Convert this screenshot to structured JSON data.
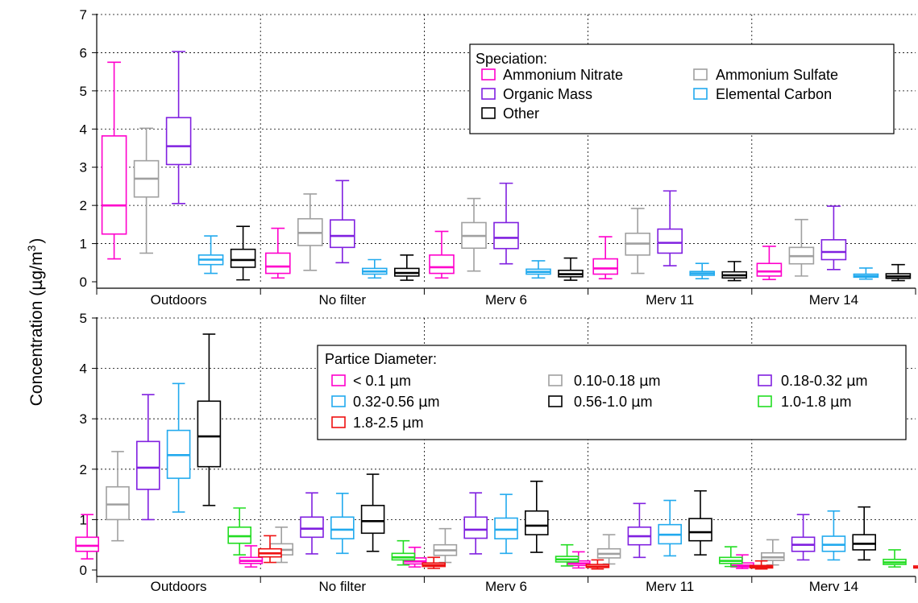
{
  "ylabel": {
    "text": "Concentration (",
    "mu": "µ",
    "unit": "g/m",
    "exp": "3",
    "close": ")"
  },
  "chart_data": [
    {
      "type": "box",
      "categories": [
        "Outdoors",
        "No filter",
        "Merv 6",
        "Merv 11",
        "Merv 14"
      ],
      "ylim": [
        0,
        7
      ],
      "yticks": [
        0,
        1,
        2,
        3,
        4,
        5,
        6,
        7
      ],
      "grid": true,
      "legend": {
        "title": "Speciation:",
        "placement": "top-right",
        "entries": [
          "Ammonium Nitrate",
          "Ammonium Sulfate",
          "Organic Mass",
          "Elemental Carbon",
          "Other"
        ]
      },
      "series": [
        {
          "name": "Ammonium Nitrate",
          "color": "#ff00cc",
          "boxes": [
            {
              "whislo": 0.6,
              "q1": 1.25,
              "med": 2.0,
              "q3": 3.82,
              "whishi": 5.75
            },
            {
              "whislo": 0.1,
              "q1": 0.22,
              "med": 0.4,
              "q3": 0.75,
              "whishi": 1.4
            },
            {
              "whislo": 0.1,
              "q1": 0.22,
              "med": 0.38,
              "q3": 0.7,
              "whishi": 1.32
            },
            {
              "whislo": 0.08,
              "q1": 0.2,
              "med": 0.35,
              "q3": 0.6,
              "whishi": 1.18
            },
            {
              "whislo": 0.06,
              "q1": 0.15,
              "med": 0.27,
              "q3": 0.48,
              "whishi": 0.93
            }
          ]
        },
        {
          "name": "Ammonium Sulfate",
          "color": "#a0a0a0",
          "boxes": [
            {
              "whislo": 0.75,
              "q1": 2.22,
              "med": 2.7,
              "q3": 3.17,
              "whishi": 4.02
            },
            {
              "whislo": 0.3,
              "q1": 0.95,
              "med": 1.28,
              "q3": 1.65,
              "whishi": 2.3
            },
            {
              "whislo": 0.28,
              "q1": 0.88,
              "med": 1.2,
              "q3": 1.55,
              "whishi": 2.18
            },
            {
              "whislo": 0.22,
              "q1": 0.7,
              "med": 1.0,
              "q3": 1.27,
              "whishi": 1.92
            },
            {
              "whislo": 0.15,
              "q1": 0.47,
              "med": 0.67,
              "q3": 0.9,
              "whishi": 1.63
            }
          ]
        },
        {
          "name": "Organic Mass",
          "color": "#8020e0",
          "boxes": [
            {
              "whislo": 2.05,
              "q1": 3.07,
              "med": 3.55,
              "q3": 4.3,
              "whishi": 6.03
            },
            {
              "whislo": 0.5,
              "q1": 0.9,
              "med": 1.2,
              "q3": 1.62,
              "whishi": 2.65
            },
            {
              "whislo": 0.47,
              "q1": 0.87,
              "med": 1.15,
              "q3": 1.55,
              "whishi": 2.58
            },
            {
              "whislo": 0.42,
              "q1": 0.75,
              "med": 1.02,
              "q3": 1.38,
              "whishi": 2.38
            },
            {
              "whislo": 0.32,
              "q1": 0.58,
              "med": 0.78,
              "q3": 1.1,
              "whishi": 1.98
            }
          ]
        },
        {
          "name": "Elemental Carbon",
          "color": "#22aaee",
          "boxes": [
            {
              "whislo": 0.22,
              "q1": 0.45,
              "med": 0.58,
              "q3": 0.7,
              "whishi": 1.2
            },
            {
              "whislo": 0.1,
              "q1": 0.2,
              "med": 0.27,
              "q3": 0.35,
              "whishi": 0.58
            },
            {
              "whislo": 0.1,
              "q1": 0.2,
              "med": 0.26,
              "q3": 0.33,
              "whishi": 0.55
            },
            {
              "whislo": 0.08,
              "q1": 0.17,
              "med": 0.22,
              "q3": 0.27,
              "whishi": 0.48
            },
            {
              "whislo": 0.07,
              "q1": 0.12,
              "med": 0.15,
              "q3": 0.2,
              "whishi": 0.36
            }
          ]
        },
        {
          "name": "Other",
          "color": "#000000",
          "boxes": [
            {
              "whislo": 0.05,
              "q1": 0.38,
              "med": 0.57,
              "q3": 0.85,
              "whishi": 1.45
            },
            {
              "whislo": 0.04,
              "q1": 0.15,
              "med": 0.23,
              "q3": 0.35,
              "whishi": 0.7
            },
            {
              "whislo": 0.04,
              "q1": 0.13,
              "med": 0.2,
              "q3": 0.3,
              "whishi": 0.62
            },
            {
              "whislo": 0.03,
              "q1": 0.1,
              "med": 0.17,
              "q3": 0.26,
              "whishi": 0.53
            },
            {
              "whislo": 0.03,
              "q1": 0.09,
              "med": 0.14,
              "q3": 0.21,
              "whishi": 0.45
            }
          ]
        }
      ]
    },
    {
      "type": "box",
      "categories": [
        "Outdoors",
        "No filter",
        "Merv 6",
        "Merv 11",
        "Merv 14"
      ],
      "ylim": [
        0,
        5
      ],
      "yticks": [
        0,
        1,
        2,
        3,
        4,
        5
      ],
      "grid": true,
      "legend": {
        "title": "Partice Diameter:",
        "placement": "top-right",
        "entries": [
          "< 0.1 ",
          "0.10-0.18 ",
          "0.18-0.32 ",
          "0.32-0.56 ",
          "0.56-1.0 ",
          "1.0-1.8 ",
          "1.8-2.5 "
        ],
        "unit_mu": "µ",
        "unit_m": "m"
      },
      "series": [
        {
          "name": "< 0.1 µm",
          "color": "#ff00cc",
          "boxes": [
            {
              "whislo": 0.22,
              "q1": 0.37,
              "med": 0.48,
              "q3": 0.65,
              "whishi": 1.1
            },
            {
              "whislo": 0.06,
              "q1": 0.13,
              "med": 0.18,
              "q3": 0.25,
              "whishi": 0.48
            },
            {
              "whislo": 0.06,
              "q1": 0.12,
              "med": 0.17,
              "q3": 0.24,
              "whishi": 0.45
            },
            {
              "whislo": 0.04,
              "q1": 0.09,
              "med": 0.13,
              "q3": 0.18,
              "whishi": 0.36
            },
            {
              "whislo": 0.03,
              "q1": 0.06,
              "med": 0.09,
              "q3": 0.14,
              "whishi": 0.3
            }
          ]
        },
        {
          "name": "0.10-0.18 µm",
          "color": "#a0a0a0",
          "boxes": [
            {
              "whislo": 0.58,
              "q1": 1.0,
              "med": 1.3,
              "q3": 1.65,
              "whishi": 2.35
            },
            {
              "whislo": 0.15,
              "q1": 0.3,
              "med": 0.4,
              "q3": 0.52,
              "whishi": 0.85
            },
            {
              "whislo": 0.15,
              "q1": 0.29,
              "med": 0.39,
              "q3": 0.5,
              "whishi": 0.82
            },
            {
              "whislo": 0.12,
              "q1": 0.24,
              "med": 0.32,
              "q3": 0.42,
              "whishi": 0.7
            },
            {
              "whislo": 0.1,
              "q1": 0.19,
              "med": 0.25,
              "q3": 0.34,
              "whishi": 0.6
            }
          ]
        },
        {
          "name": "0.18-0.32 µm",
          "color": "#8020e0",
          "boxes": [
            {
              "whislo": 1.0,
              "q1": 1.6,
              "med": 2.03,
              "q3": 2.55,
              "whishi": 3.48
            },
            {
              "whislo": 0.32,
              "q1": 0.65,
              "med": 0.82,
              "q3": 1.05,
              "whishi": 1.53
            },
            {
              "whislo": 0.32,
              "q1": 0.63,
              "med": 0.8,
              "q3": 1.05,
              "whishi": 1.53
            },
            {
              "whislo": 0.25,
              "q1": 0.5,
              "med": 0.67,
              "q3": 0.85,
              "whishi": 1.32
            },
            {
              "whislo": 0.2,
              "q1": 0.37,
              "med": 0.5,
              "q3": 0.65,
              "whishi": 1.1
            }
          ]
        },
        {
          "name": "0.32-0.56 µm",
          "color": "#22aaee",
          "boxes": [
            {
              "whislo": 1.15,
              "q1": 1.82,
              "med": 2.28,
              "q3": 2.77,
              "whishi": 3.7
            },
            {
              "whislo": 0.33,
              "q1": 0.62,
              "med": 0.8,
              "q3": 1.05,
              "whishi": 1.52
            },
            {
              "whislo": 0.33,
              "q1": 0.62,
              "med": 0.8,
              "q3": 1.03,
              "whishi": 1.5
            },
            {
              "whislo": 0.28,
              "q1": 0.52,
              "med": 0.7,
              "q3": 0.9,
              "whishi": 1.38
            },
            {
              "whislo": 0.2,
              "q1": 0.37,
              "med": 0.5,
              "q3": 0.67,
              "whishi": 1.17
            }
          ]
        },
        {
          "name": "0.56-1.0 µm",
          "color": "#000000",
          "boxes": [
            {
              "whislo": 1.28,
              "q1": 2.05,
              "med": 2.65,
              "q3": 3.35,
              "whishi": 4.68
            },
            {
              "whislo": 0.37,
              "q1": 0.73,
              "med": 0.97,
              "q3": 1.28,
              "whishi": 1.9
            },
            {
              "whislo": 0.35,
              "q1": 0.7,
              "med": 0.88,
              "q3": 1.17,
              "whishi": 1.76
            },
            {
              "whislo": 0.3,
              "q1": 0.58,
              "med": 0.75,
              "q3": 1.02,
              "whishi": 1.57
            },
            {
              "whislo": 0.2,
              "q1": 0.4,
              "med": 0.52,
              "q3": 0.7,
              "whishi": 1.25
            }
          ]
        },
        {
          "name": "1.0-1.8 µm",
          "color": "#22dd22",
          "boxes": [
            {
              "whislo": 0.3,
              "q1": 0.53,
              "med": 0.67,
              "q3": 0.85,
              "whishi": 1.23
            },
            {
              "whislo": 0.1,
              "q1": 0.2,
              "med": 0.25,
              "q3": 0.33,
              "whishi": 0.58
            },
            {
              "whislo": 0.08,
              "q1": 0.16,
              "med": 0.21,
              "q3": 0.27,
              "whishi": 0.5
            },
            {
              "whislo": 0.07,
              "q1": 0.13,
              "med": 0.18,
              "q3": 0.25,
              "whishi": 0.46
            },
            {
              "whislo": 0.06,
              "q1": 0.11,
              "med": 0.15,
              "q3": 0.21,
              "whishi": 0.4
            }
          ]
        },
        {
          "name": "1.8-2.5 µm",
          "color": "#ee1111",
          "boxes": [
            {
              "whislo": 0.15,
              "q1": 0.26,
              "med": 0.33,
              "q3": 0.42,
              "whishi": 0.68
            },
            {
              "whislo": 0.03,
              "q1": 0.07,
              "med": 0.1,
              "q3": 0.14,
              "whishi": 0.25
            },
            {
              "whislo": 0.02,
              "q1": 0.05,
              "med": 0.07,
              "q3": 0.11,
              "whishi": 0.2
            },
            {
              "whislo": 0.02,
              "q1": 0.04,
              "med": 0.06,
              "q3": 0.09,
              "whishi": 0.18
            },
            {
              "whislo": 0.02,
              "q1": 0.04,
              "med": 0.05,
              "q3": 0.08,
              "whishi": 0.16
            }
          ]
        }
      ]
    }
  ]
}
